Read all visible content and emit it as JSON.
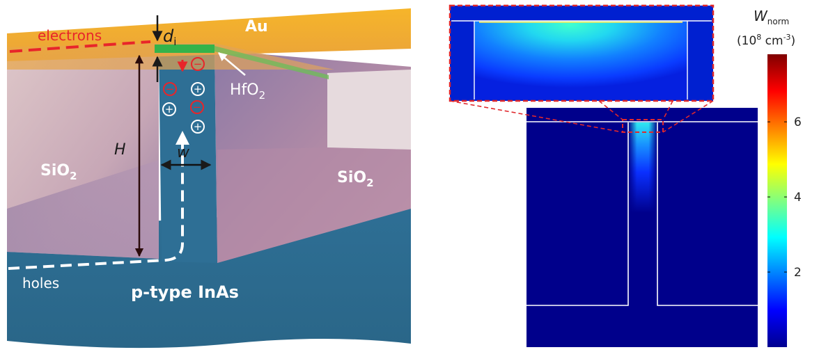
{
  "left_panel": {
    "labels": {
      "electrons": "electrons",
      "au": "Au",
      "d": "d",
      "d_sub": "i",
      "hfo2_main": "HfO",
      "hfo2_sub": "2",
      "h": "H",
      "w": "w",
      "sio2_left_main": "SiO",
      "sio2_left_sub": "2",
      "sio2_right_main": "SiO",
      "sio2_right_sub": "2",
      "holes": "holes",
      "inas": "p-type InAs"
    },
    "charges": {
      "negative_symbol": "−",
      "positive_symbol": "+"
    },
    "colors": {
      "gold": "#f3ad1f",
      "inas_blue": "#2f6e93",
      "oxide_green": "#35b34a",
      "electron_red": "#e8252a"
    }
  },
  "right_panel": {
    "colorbar": {
      "title_main": "W",
      "title_sub": "norm",
      "units_prefix": "(10",
      "units_exp1": "8",
      "units_mid": " cm",
      "units_exp2": "-3",
      "units_suffix": ")",
      "ticks": [
        "6",
        "4",
        "2"
      ],
      "tick_values": [
        6,
        4,
        2
      ],
      "range": [
        0,
        7.8
      ],
      "colormap": "jet"
    },
    "colors": {
      "background": "#00008b",
      "zoom_border": "#e0282c",
      "outline": "#ffffff"
    }
  }
}
